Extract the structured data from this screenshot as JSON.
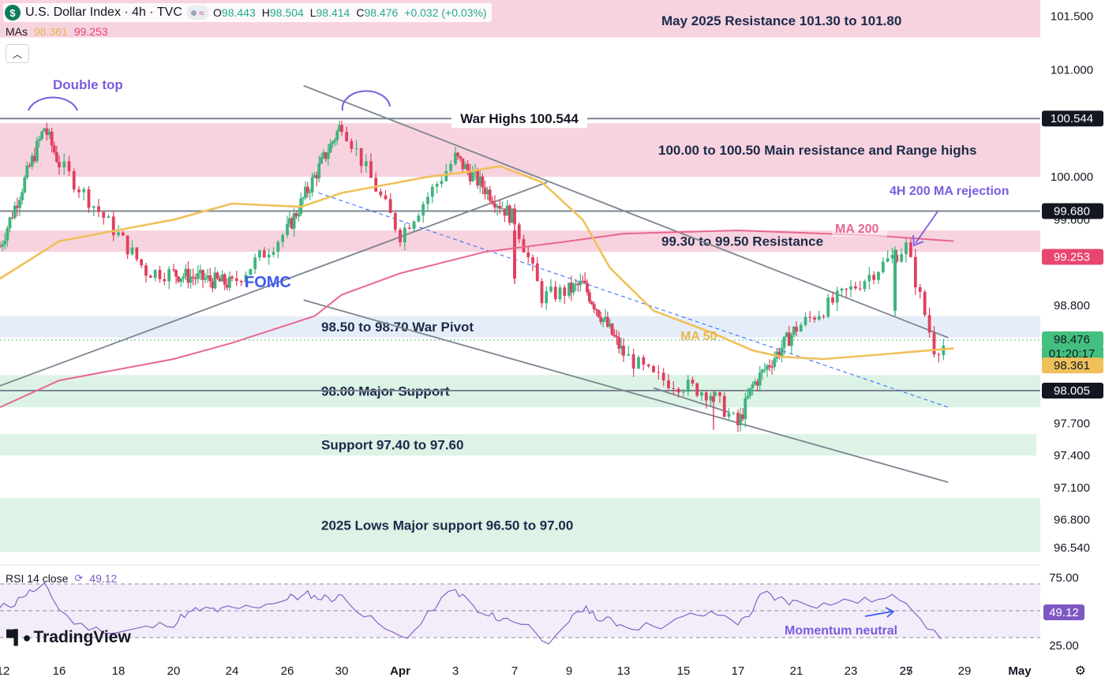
{
  "header": {
    "symbol_icon": "$",
    "title": "U.S. Dollar Index · 4h · TVC",
    "ohlc": [
      {
        "k": "O",
        "v": "98.443"
      },
      {
        "k": "H",
        "v": "98.504"
      },
      {
        "k": "L",
        "v": "98.414"
      },
      {
        "k": "C",
        "v": "98.476"
      },
      {
        "k": "",
        "v": "+0.032 (+0.03%)"
      }
    ]
  },
  "mas_label": "MAs",
  "ma50_value": "98.361",
  "ma200_value": "99.253",
  "rsi_label": "RSI 14 close",
  "rsi_value": "49.12",
  "logo_text": "TradingView",
  "colors": {
    "up": "#3fb37f",
    "down": "#e0405e",
    "ma50": "#f0c05a",
    "ma200": "#e8678f",
    "resistance_zone": "#f7d3df",
    "support_zone": "#dcf3e6",
    "pivot_zone": "#e5eef8",
    "annotation": "#7b5ce0",
    "rsi": "#7e57c2"
  },
  "chart_data": {
    "type": "candlestick",
    "title": "U.S. Dollar Index · 4h · TVC",
    "y_range": [
      96.4,
      101.65
    ],
    "price_ticks": [
      "101.500",
      "101.000",
      "100.000",
      "99.600",
      "98.800",
      "97.700",
      "97.400",
      "97.100",
      "96.800",
      "96.540"
    ],
    "x_ticks": [
      "12",
      "16",
      "18",
      "20",
      "24",
      "26",
      "30",
      "Apr",
      "3",
      "7",
      "9",
      "13",
      "15",
      "17",
      "21",
      "23",
      "25",
      "27",
      "29",
      "May"
    ],
    "price_labels": [
      {
        "value": "100.544",
        "kind": "level"
      },
      {
        "value": "99.680",
        "kind": "level"
      },
      {
        "value": "99.253",
        "kind": "ma200"
      },
      {
        "value": "98.476",
        "kind": "last"
      },
      {
        "value": "01:20:17",
        "kind": "countdown"
      },
      {
        "value": "98.361",
        "kind": "ma50"
      },
      {
        "value": "98.005",
        "kind": "level"
      }
    ],
    "zones": [
      {
        "label": "May 2025 Resistance 101.30 to 101.80",
        "low": 101.3,
        "high": 101.8,
        "kind": "resistance"
      },
      {
        "label": "100.00 to 100.50 Main resistance and Range highs",
        "low": 100.0,
        "high": 100.5,
        "kind": "resistance"
      },
      {
        "label": "99.30 to 99.50 Resistance",
        "low": 99.3,
        "high": 99.5,
        "kind": "resistance"
      },
      {
        "label": "98.50 to 98.70 War Pivot",
        "low": 98.5,
        "high": 98.7,
        "kind": "pivot"
      },
      {
        "label": "98.00 Major Support",
        "low": 97.85,
        "high": 98.15,
        "kind": "support"
      },
      {
        "label": "Support 97.40 to 97.60",
        "low": 97.4,
        "high": 97.6,
        "kind": "support"
      },
      {
        "label": "2025 Lows Major support 96.50 to 97.00",
        "low": 96.5,
        "high": 97.0,
        "kind": "support"
      }
    ],
    "levels": [
      {
        "value": 100.544,
        "label": "War Highs 100.544"
      },
      {
        "value": 99.68,
        "label": ""
      },
      {
        "value": 98.005,
        "label": ""
      }
    ],
    "annotations": [
      "Double top",
      "FOMC",
      "4H 200 MA rejection",
      "MA 200",
      "MA 50",
      "Momentum neutral"
    ],
    "key_points": [
      {
        "date": "Mar 15",
        "price": 100.46
      },
      {
        "date": "Mar 19",
        "price": 99.12
      },
      {
        "date": "Mar 24",
        "price": 99.0
      },
      {
        "date": "Mar 30",
        "price": 100.5
      },
      {
        "date": "Apr 1",
        "price": 99.46
      },
      {
        "date": "Apr 3",
        "price": 100.18
      },
      {
        "date": "Apr 7",
        "price": 99.6
      },
      {
        "date": "Apr 8",
        "price": 98.88
      },
      {
        "date": "Apr 10",
        "price": 99.0
      },
      {
        "date": "Apr 14",
        "price": 98.13
      },
      {
        "date": "Apr 16",
        "price": 97.98
      },
      {
        "date": "Apr 17",
        "price": 97.68
      },
      {
        "date": "Apr 18",
        "price": 98.05
      },
      {
        "date": "Apr 23",
        "price": 98.95
      },
      {
        "date": "Apr 25",
        "price": 99.35
      },
      {
        "date": "Apr 26",
        "price": 98.4
      },
      {
        "date": "Apr 27",
        "price": 98.48
      }
    ],
    "rsi": {
      "ticks": [
        "75.00",
        "25.00"
      ],
      "upper": 70,
      "mid": 50,
      "lower": 30,
      "last": 49.12
    }
  }
}
